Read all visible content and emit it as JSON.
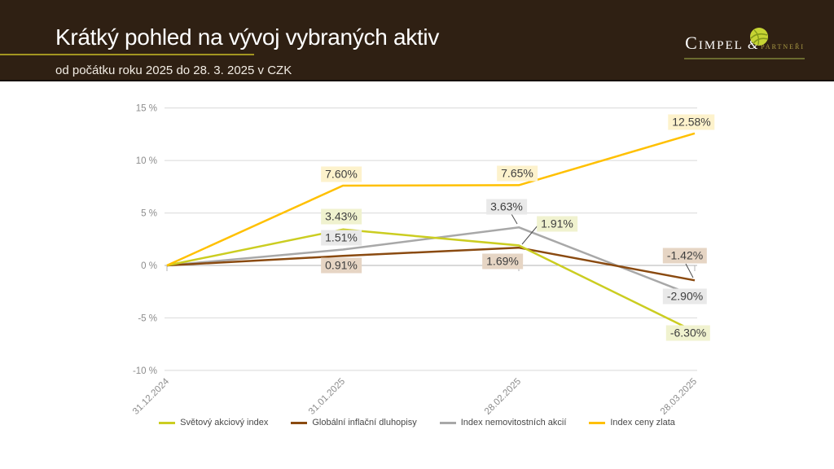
{
  "header": {
    "title": "Krátký pohled na vývoj vybraných aktiv",
    "subtitle": "od počátku roku 2025 do 28. 3. 2025 v CZK",
    "accent_color": "#a39621",
    "background_color": "#2f2013",
    "logo": {
      "name": "Cimpel",
      "ampersand": "&",
      "suffix": "partneři",
      "suffix_color": "#ac9c44",
      "icon": "leaf-ball-icon"
    }
  },
  "chart_data": {
    "type": "line",
    "title": "",
    "xlabel": "",
    "ylabel": "",
    "x": [
      "31.12.2024",
      "31.01.2025",
      "28.02.2025",
      "28.03.2025"
    ],
    "y_tick_values": [
      15,
      10,
      5,
      0,
      -5,
      -10
    ],
    "y_tick_labels": [
      "15 %",
      "10 %",
      "5 %",
      "0 %",
      "-5 %",
      "-10 %"
    ],
    "ylim": [
      -10,
      15
    ],
    "value_unit": "%",
    "grid": true,
    "legend_position": "bottom",
    "series": [
      {
        "name": "Světový akciový index",
        "color": "#cbcd21",
        "label_bg": "#f0f2cf",
        "values": [
          0,
          3.43,
          1.91,
          -6.3
        ],
        "point_labels": [
          "3.43%",
          "1.91%",
          "-6.30%"
        ]
      },
      {
        "name": "Globální inflační dluhopisy",
        "color": "#8a4a10",
        "label_bg": "#e6d5c4",
        "values": [
          0,
          0.91,
          1.69,
          -1.42
        ],
        "point_labels": [
          "0.91%",
          "1.69%",
          "-1.42%"
        ]
      },
      {
        "name": "Index nemovitostních akcií",
        "color": "#a8a8a8",
        "label_bg": "#e9e9e9",
        "values": [
          0,
          1.51,
          3.63,
          -2.9
        ],
        "point_labels": [
          "1.51%",
          "3.63%",
          "-2.90%"
        ]
      },
      {
        "name": "Index ceny zlata",
        "color": "#ffc000",
        "label_bg": "#fdf2cc",
        "values": [
          0,
          7.6,
          7.65,
          12.58
        ],
        "point_labels": [
          "7.60%",
          "7.65%",
          "12.58%"
        ]
      }
    ]
  }
}
